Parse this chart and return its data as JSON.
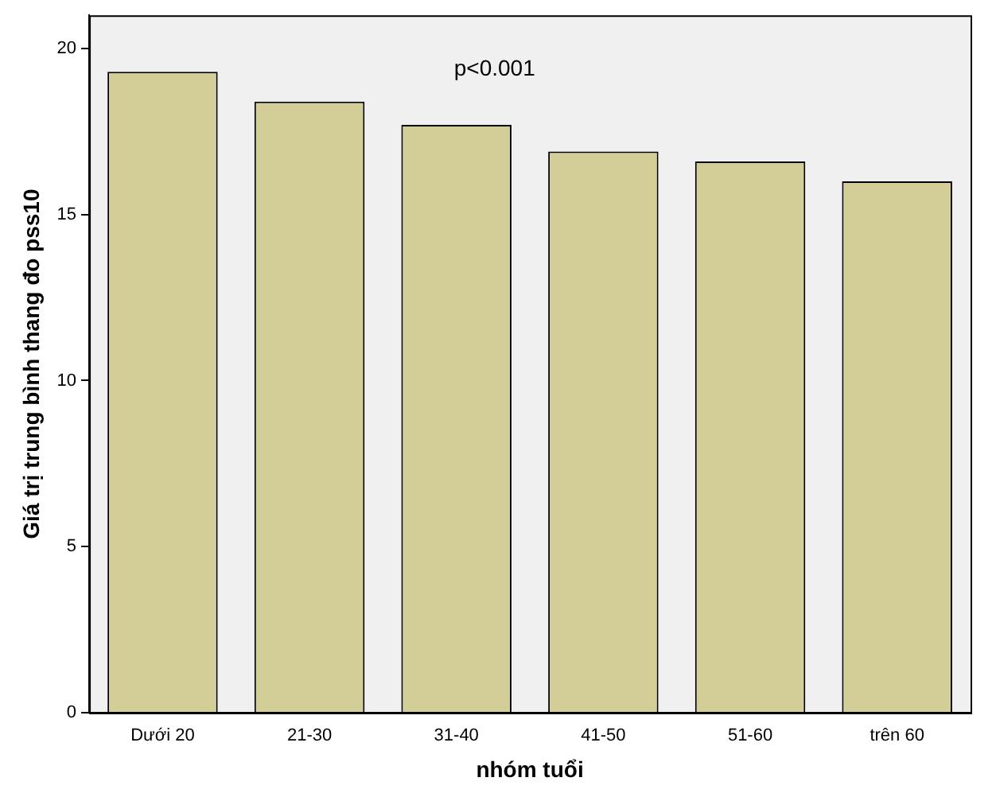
{
  "chart_data": {
    "type": "bar",
    "xlabel": "nhóm tuổi",
    "ylabel": "Giá trị trung bình thang đo pss10",
    "categories": [
      "Dưới 20",
      "21-30",
      "31-40",
      "41-50",
      "51-60",
      "trên 60"
    ],
    "values": [
      19.3,
      18.4,
      17.7,
      16.9,
      16.6,
      16.0
    ],
    "color": "#d3ce98",
    "ylim": [
      0,
      21
    ],
    "yticks": [
      0,
      5,
      10,
      15,
      20
    ],
    "grid": false,
    "legend": false,
    "annotations": [
      "p<0.001"
    ]
  }
}
